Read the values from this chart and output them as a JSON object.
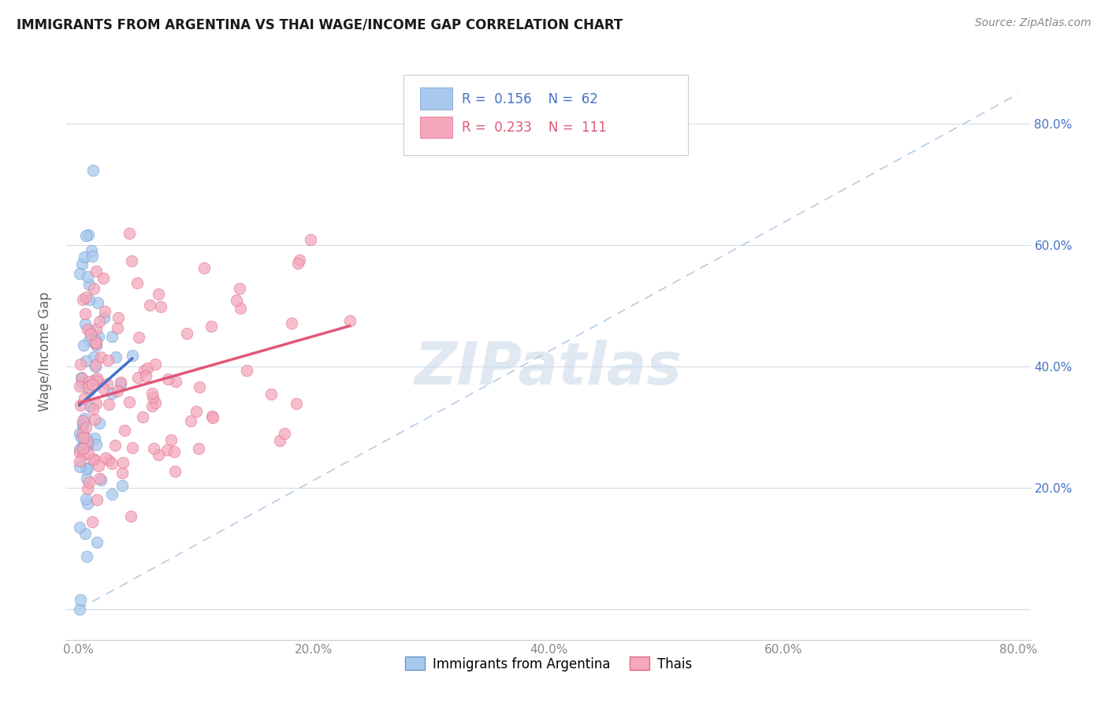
{
  "title": "IMMIGRANTS FROM ARGENTINA VS THAI WAGE/INCOME GAP CORRELATION CHART",
  "source": "Source: ZipAtlas.com",
  "ylabel": "Wage/Income Gap",
  "watermark": "ZIPatlas",
  "argentina_color": "#a8c8ee",
  "thais_color": "#f4a8bc",
  "argentina_edge": "#6898cc",
  "thais_edge": "#e06888",
  "line_argentina": "#4472c4",
  "line_thais": "#e05878",
  "legend_color1": "#a8c8ee",
  "legend_color2": "#f4a8bc",
  "argentina_R": 0.156,
  "thais_R": 0.233,
  "argentina_N": 62,
  "thais_N": 111,
  "ref_line_color": "#b0c8e0",
  "grid_color": "#d0dce8",
  "title_fontsize": 12,
  "source_fontsize": 10,
  "axis_tick_color": "#888888",
  "right_tick_color": "#4472c4",
  "legend_text_color1": "#4472c4",
  "legend_text_color2": "#e05878",
  "xlim": [
    0.0,
    0.8
  ],
  "ylim": [
    -0.05,
    0.9
  ],
  "x_ticks": [
    0.0,
    0.2,
    0.4,
    0.6,
    0.8
  ],
  "y_ticks": [
    0.0,
    0.2,
    0.4,
    0.6,
    0.8
  ]
}
